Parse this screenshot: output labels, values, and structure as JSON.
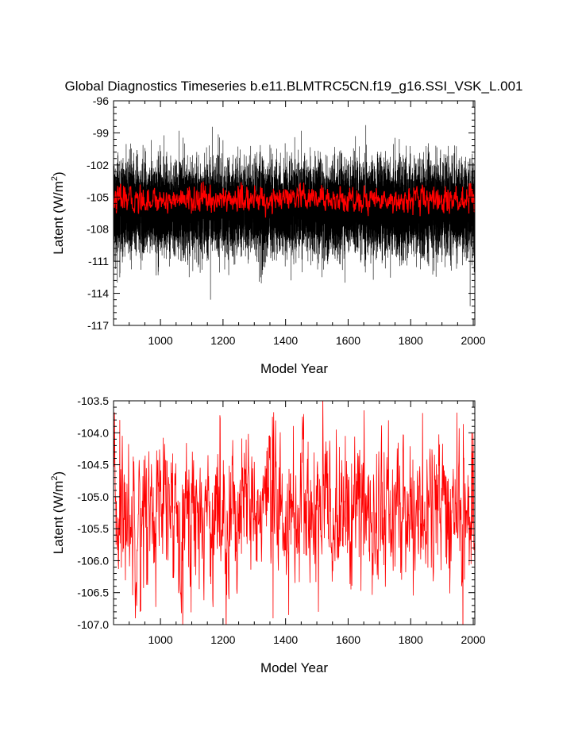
{
  "colors": {
    "raw_series": "#000000",
    "smoothed_series": "#ff0000",
    "axes": "#000000",
    "background": "#ffffff"
  },
  "chart_data": [
    {
      "type": "line",
      "title": "Global Diagnostics Timeseries b.e11.BLMTRC5CN.f19_g16.SSI_VSK_L.001",
      "xlabel": "Model Year",
      "ylabel_main": "Latent (W/m",
      "ylabel_sup": "2",
      "ylabel_end": ")",
      "xlim": [
        850,
        2005
      ],
      "ylim": [
        -117,
        -96
      ],
      "xticks": [
        1000,
        1200,
        1400,
        1600,
        1800,
        2000
      ],
      "xtick_labels": [
        "1000",
        "1200",
        "1400",
        "1600",
        "1800",
        "2000"
      ],
      "yticks": [
        -96,
        -99,
        -102,
        -105,
        -108,
        -111,
        -114,
        -117
      ],
      "ytick_labels": [
        "-96",
        "-99",
        "-102",
        "-105",
        "-108",
        "-111",
        "-114",
        "-117"
      ],
      "grid": false,
      "series": [
        {
          "role": "monthly",
          "color": "#000000",
          "x_range": [
            850,
            2005
          ],
          "typical_range": [
            -110,
            -102
          ],
          "extremes": [
            {
              "x": 1160,
              "y": -114.6
            },
            {
              "x": 1450,
              "y": -98.8
            },
            {
              "x": 1990,
              "y": -115.2
            },
            {
              "x": 870,
              "y": -112.5
            },
            {
              "x": 1590,
              "y": -113.0
            }
          ]
        },
        {
          "role": "annual",
          "color": "#ff0000",
          "x_range": [
            850,
            2005
          ],
          "typical_range": [
            -106.5,
            -104.0
          ]
        }
      ]
    },
    {
      "type": "line",
      "title": "",
      "xlabel": "Model Year",
      "ylabel_main": "Latent (W/m",
      "ylabel_sup": "2",
      "ylabel_end": ")",
      "xlim": [
        850,
        2005
      ],
      "ylim": [
        -107.0,
        -103.5
      ],
      "xticks": [
        1000,
        1200,
        1400,
        1600,
        1800,
        2000
      ],
      "xtick_labels": [
        "1000",
        "1200",
        "1400",
        "1600",
        "1800",
        "2000"
      ],
      "yticks": [
        -103.5,
        -104.0,
        -104.5,
        -105.0,
        -105.5,
        -106.0,
        -106.5,
        -107.0
      ],
      "ytick_labels": [
        "-103.5",
        "-104.0",
        "-104.5",
        "-105.0",
        "-105.5",
        "-106.0",
        "-106.5",
        "-107.0"
      ],
      "grid": false,
      "series": [
        {
          "role": "annual",
          "color": "#ff0000",
          "x_range": [
            850,
            2005
          ],
          "typical_range": [
            -106.5,
            -104.0
          ],
          "extremes": [
            {
              "x": 870,
              "y": -103.8
            },
            {
              "x": 1358,
              "y": -103.75
            },
            {
              "x": 1360,
              "y": -106.9
            },
            {
              "x": 935,
              "y": -106.8
            },
            {
              "x": 1410,
              "y": -106.85
            },
            {
              "x": 1505,
              "y": -106.8
            }
          ]
        }
      ]
    }
  ]
}
